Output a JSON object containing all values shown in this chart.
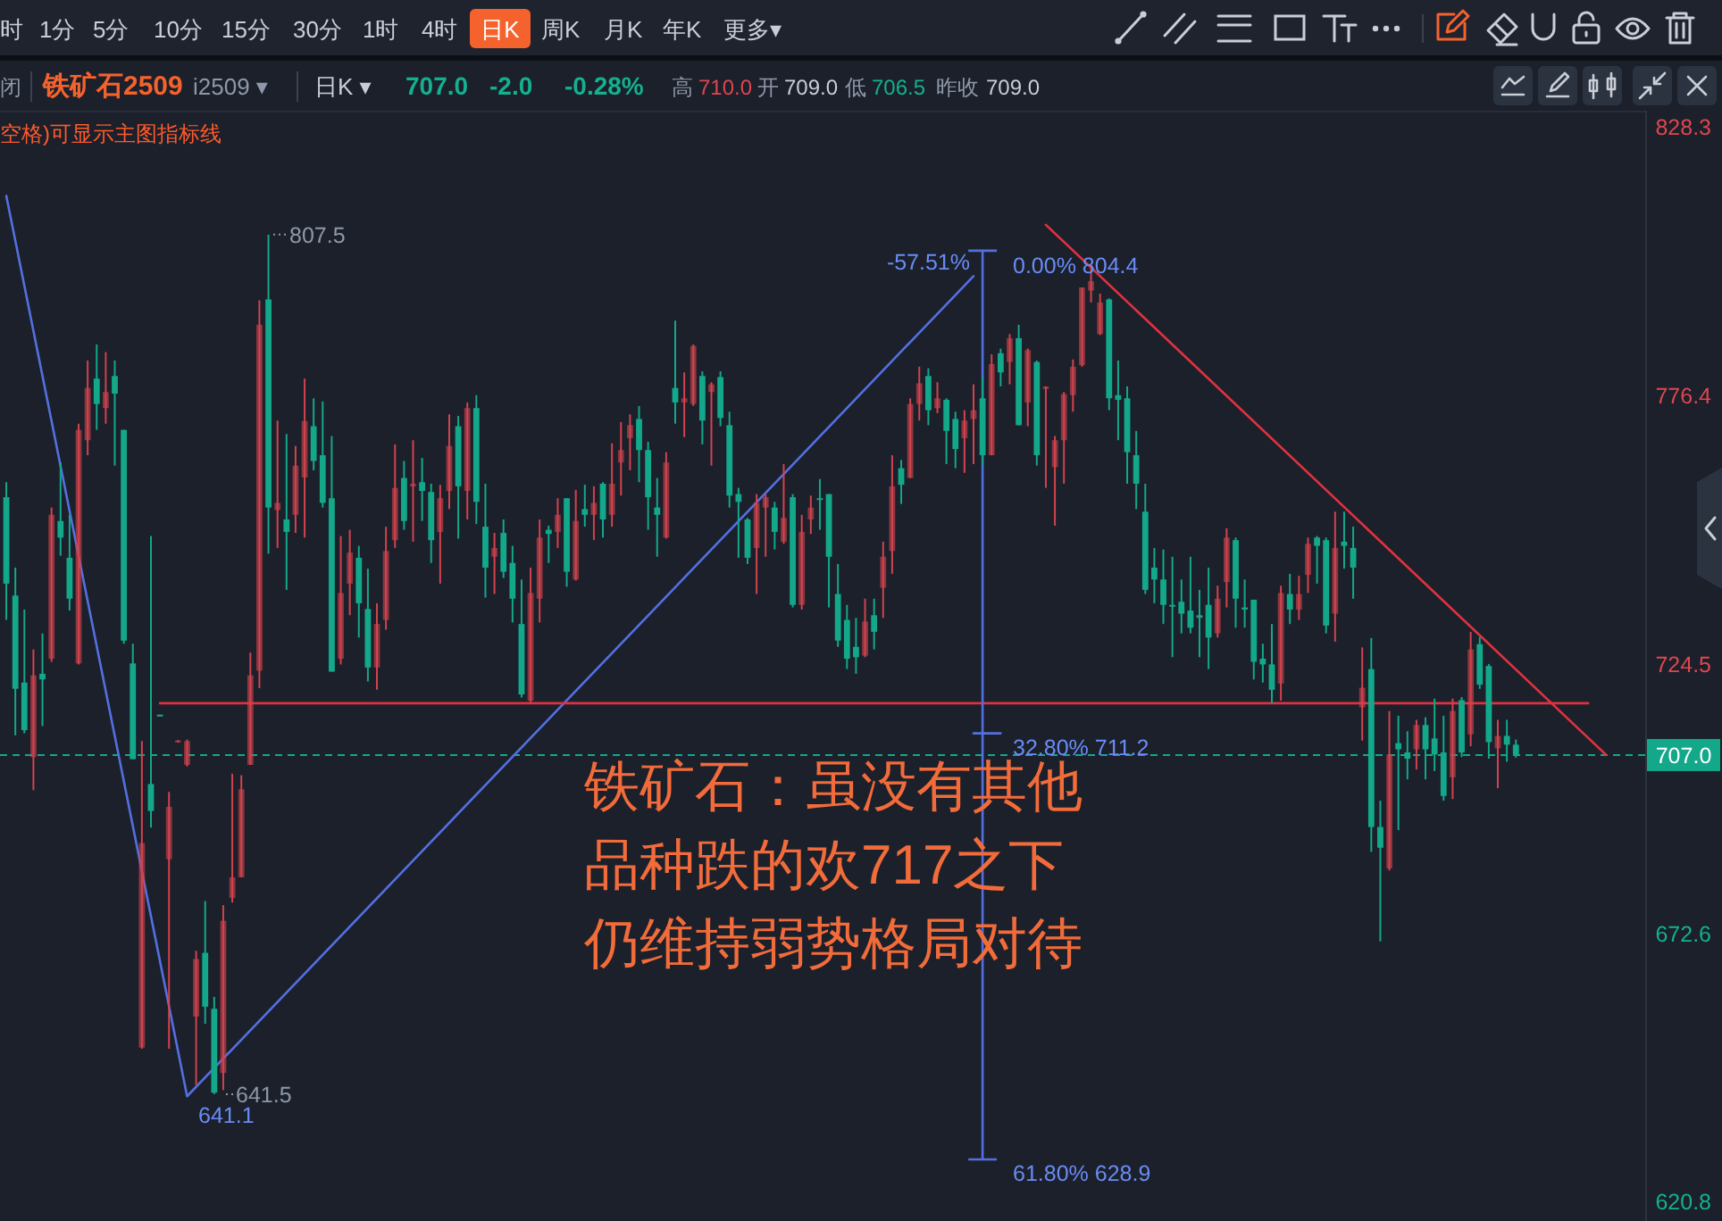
{
  "chart_data": {
    "type": "candlestick",
    "title": "铁矿石2509",
    "subtitle": "i2509 ▾",
    "categories": [
      null,
      null,
      null,
      null,
      null,
      null,
      null,
      null,
      null,
      null,
      null,
      null,
      null,
      null,
      null,
      null,
      null,
      null,
      null,
      null,
      null,
      null,
      null,
      null,
      null,
      null,
      null,
      null,
      null,
      null,
      null,
      null,
      null,
      null,
      null,
      null,
      null,
      null,
      null,
      null,
      null,
      null,
      null,
      null,
      null,
      null,
      null,
      null,
      null,
      null,
      null,
      null,
      null,
      null,
      null,
      null,
      null,
      null,
      null,
      null,
      null,
      null,
      null,
      null,
      null,
      null,
      null,
      null,
      null,
      null,
      null,
      null,
      null,
      null,
      null,
      null,
      null,
      null,
      null,
      null,
      null,
      null,
      null,
      null,
      null,
      null,
      null,
      null,
      null,
      null,
      null,
      null,
      null,
      null,
      null,
      null,
      null,
      null,
      null,
      null,
      null,
      null,
      null,
      null,
      null,
      null,
      null,
      null,
      null,
      null,
      null,
      null,
      null,
      null,
      null,
      null,
      null,
      null,
      null,
      null,
      null,
      null,
      null,
      null,
      null,
      null,
      null,
      null,
      null,
      null,
      null,
      null,
      null,
      null,
      null,
      null,
      null,
      null,
      null,
      null,
      null,
      null,
      null,
      null,
      null,
      null,
      null,
      null,
      null,
      null,
      null,
      null,
      null,
      null,
      null,
      null,
      null,
      null,
      null,
      null,
      null,
      null,
      null,
      null,
      null,
      null,
      null,
      null,
      null,
      null,
      null,
      null,
      null,
      null,
      null,
      null,
      null,
      null,
      null,
      null,
      null,
      null
    ],
    "ohlc": [
      [
        756.8,
        759.7,
        733.1,
        740.1
      ],
      [
        737.8,
        743.2,
        710.8,
        719.8
      ],
      [
        721.0,
        735.1,
        711.2,
        711.8
      ],
      [
        706.6,
        727.4,
        700.2,
        722.4
      ],
      [
        722.7,
        730.5,
        712.6,
        721.6
      ],
      [
        725.6,
        754.8,
        725.0,
        753.4
      ],
      [
        752.2,
        763.5,
        745.5,
        749.0
      ],
      [
        745.1,
        753.4,
        734.9,
        737.2
      ],
      [
        724.7,
        771.0,
        724.5,
        769.8
      ],
      [
        767.8,
        783.2,
        764.9,
        777.9
      ],
      [
        779.7,
        786.3,
        769.8,
        774.8
      ],
      [
        774.0,
        784.8,
        771.0,
        777.1
      ],
      [
        780.2,
        783.2,
        762.9,
        776.8
      ],
      [
        769.8,
        769.8,
        728.5,
        729.1
      ],
      [
        724.7,
        728.5,
        706.2,
        706.2
      ],
      [
        650.5,
        709.7,
        650.3,
        690.0
      ],
      [
        701.4,
        749.3,
        693.0,
        696.2
      ],
      [
        714.8,
        714.8,
        714.5,
        714.5
      ],
      [
        686.9,
        699.9,
        650.3,
        697.0
      ],
      [
        709.6,
        709.9,
        709.4,
        709.8
      ],
      [
        705.1,
        710.0,
        704.8,
        709.7
      ],
      [
        656.5,
        669.2,
        643.3,
        667.6
      ],
      [
        668.8,
        678.8,
        655.1,
        658.4
      ],
      [
        658.0,
        660.3,
        641.5,
        641.8
      ],
      [
        645.6,
        678.0,
        642.3,
        675.0
      ],
      [
        679.4,
        703.4,
        678.5,
        683.4
      ],
      [
        683.4,
        703.1,
        683.4,
        700.4
      ],
      [
        705.1,
        726.8,
        705.1,
        722.4
      ],
      [
        723.3,
        794.8,
        719.9,
        790.1
      ],
      [
        795.0,
        807.5,
        745.9,
        754.8
      ],
      [
        754.3,
        771.6,
        747.0,
        755.7
      ],
      [
        752.5,
        769.0,
        738.9,
        750.1
      ],
      [
        753.4,
        766.7,
        749.9,
        762.9
      ],
      [
        760.6,
        779.7,
        749.0,
        771.5
      ],
      [
        770.5,
        775.9,
        762.0,
        763.8
      ],
      [
        764.9,
        775.3,
        754.8,
        755.7
      ],
      [
        756.6,
        768.6,
        723.1,
        723.1
      ],
      [
        725.6,
        749.3,
        724.5,
        738.3
      ],
      [
        740.1,
        750.5,
        734.0,
        746.1
      ],
      [
        745.1,
        747.4,
        729.7,
        736.3
      ],
      [
        735.2,
        743.0,
        721.2,
        723.9
      ],
      [
        723.9,
        736.3,
        719.6,
        732.3
      ],
      [
        733.1,
        751.1,
        731.2,
        746.4
      ],
      [
        748.5,
        767.0,
        747.0,
        758.6
      ],
      [
        760.5,
        763.8,
        750.5,
        752.2
      ],
      [
        758.9,
        767.8,
        748.2,
        759.4
      ],
      [
        759.7,
        764.4,
        752.2,
        758.0
      ],
      [
        757.8,
        759.4,
        744.1,
        748.5
      ],
      [
        750.1,
        759.2,
        740.1,
        756.6
      ],
      [
        758.0,
        772.8,
        754.5,
        766.7
      ],
      [
        770.5,
        772.5,
        748.8,
        758.9
      ],
      [
        758.0,
        775.1,
        752.5,
        774.0
      ],
      [
        774.0,
        776.5,
        751.6,
        755.9
      ],
      [
        751.1,
        759.4,
        737.4,
        743.2
      ],
      [
        745.3,
        749.9,
        738.1,
        747.0
      ],
      [
        749.9,
        752.5,
        741.2,
        742.4
      ],
      [
        744.1,
        747.4,
        732.6,
        737.2
      ],
      [
        732.3,
        740.9,
        718.1,
        718.7
      ],
      [
        717.5,
        743.2,
        717.0,
        738.3
      ],
      [
        737.2,
        752.5,
        732.6,
        749.0
      ],
      [
        750.5,
        751.3,
        744.1,
        749.7
      ],
      [
        750.1,
        756.6,
        747.0,
        753.4
      ],
      [
        756.6,
        756.6,
        739.5,
        742.4
      ],
      [
        740.9,
        758.2,
        740.7,
        752.2
      ],
      [
        754.5,
        759.2,
        751.1,
        753.4
      ],
      [
        753.4,
        758.9,
        748.5,
        755.7
      ],
      [
        759.4,
        759.7,
        749.0,
        752.5
      ],
      [
        753.4,
        767.2,
        751.1,
        759.4
      ],
      [
        763.5,
        771.3,
        757.1,
        765.9
      ],
      [
        768.2,
        772.8,
        762.0,
        770.7
      ],
      [
        771.9,
        774.4,
        759.7,
        765.9
      ],
      [
        765.9,
        767.5,
        750.5,
        756.8
      ],
      [
        754.8,
        760.5,
        745.3,
        753.4
      ],
      [
        749.0,
        765.5,
        748.8,
        763.5
      ],
      [
        777.9,
        790.9,
        771.0,
        775.1
      ],
      [
        775.1,
        780.9,
        768.4,
        775.9
      ],
      [
        774.8,
        786.3,
        774.4,
        786.0
      ],
      [
        780.2,
        781.1,
        767.0,
        771.6
      ],
      [
        777.1,
        779.0,
        762.9,
        778.6
      ],
      [
        780.0,
        781.1,
        770.5,
        772.1
      ],
      [
        770.7,
        773.3,
        754.8,
        757.1
      ],
      [
        757.4,
        758.6,
        745.1,
        755.9
      ],
      [
        752.5,
        752.8,
        743.9,
        745.1
      ],
      [
        747.0,
        757.4,
        738.1,
        755.7
      ],
      [
        754.8,
        757.4,
        745.3,
        756.8
      ],
      [
        754.8,
        755.9,
        746.7,
        750.1
      ],
      [
        748.2,
        763.2,
        747.8,
        752.8
      ],
      [
        756.8,
        757.4,
        735.5,
        736.0
      ],
      [
        736.0,
        753.4,
        735.1,
        750.1
      ],
      [
        752.5,
        757.1,
        749.7,
        754.8
      ],
      [
        756.6,
        760.3,
        750.5,
        756.3
      ],
      [
        757.4,
        757.4,
        735.5,
        745.3
      ],
      [
        738.1,
        743.9,
        727.9,
        729.1
      ],
      [
        733.1,
        736.0,
        723.6,
        725.6
      ],
      [
        727.9,
        733.5,
        722.7,
        725.9
      ],
      [
        726.2,
        737.2,
        725.9,
        732.8
      ],
      [
        734.0,
        737.2,
        727.4,
        730.8
      ],
      [
        739.3,
        748.2,
        733.5,
        745.3
      ],
      [
        746.4,
        764.9,
        742.0,
        758.9
      ],
      [
        762.4,
        764.0,
        755.5,
        759.2
      ],
      [
        760.5,
        775.9,
        760.5,
        774.8
      ],
      [
        774.8,
        782.0,
        771.6,
        778.8
      ],
      [
        780.2,
        781.7,
        770.7,
        773.6
      ],
      [
        774.0,
        779.0,
        773.0,
        775.9
      ],
      [
        775.6,
        775.9,
        763.2,
        769.6
      ],
      [
        771.9,
        773.3,
        762.4,
        766.1
      ],
      [
        768.2,
        773.6,
        761.5,
        771.6
      ],
      [
        771.9,
        778.6,
        763.2,
        773.6
      ],
      [
        775.9,
        780.0,
        762.9,
        764.9
      ],
      [
        764.9,
        784.4,
        764.9,
        782.5
      ],
      [
        784.6,
        785.5,
        778.2,
        780.9
      ],
      [
        782.9,
        788.3,
        778.6,
        787.5
      ],
      [
        787.5,
        790.1,
        770.7,
        770.7
      ],
      [
        775.1,
        785.5,
        770.5,
        785.2
      ],
      [
        782.9,
        783.2,
        762.9,
        764.9
      ],
      [
        777.7,
        778.2,
        758.6,
        778.2
      ],
      [
        762.6,
        768.6,
        751.3,
        767.8
      ],
      [
        767.8,
        777.1,
        759.4,
        776.7
      ],
      [
        776.5,
        783.4,
        773.3,
        782.0
      ],
      [
        782.3,
        797.3,
        782.0,
        797.3
      ],
      [
        796.7,
        801.7,
        794.4,
        798.5
      ],
      [
        788.3,
        796.1,
        788.1,
        794.4
      ],
      [
        795.0,
        795.2,
        773.6,
        775.9
      ],
      [
        776.5,
        783.2,
        767.8,
        775.6
      ],
      [
        775.9,
        778.2,
        759.4,
        765.5
      ],
      [
        764.9,
        769.6,
        754.5,
        759.4
      ],
      [
        754.0,
        759.4,
        738.1,
        738.9
      ],
      [
        743.2,
        747.0,
        736.3,
        740.9
      ],
      [
        740.9,
        746.7,
        732.3,
        736.0
      ],
      [
        736.0,
        745.3,
        725.9,
        735.8
      ],
      [
        736.6,
        740.9,
        730.5,
        734.3
      ],
      [
        734.9,
        745.3,
        730.5,
        731.6
      ],
      [
        734.0,
        738.9,
        725.9,
        733.5
      ],
      [
        736.0,
        743.2,
        723.6,
        729.7
      ],
      [
        730.5,
        739.7,
        729.7,
        737.2
      ],
      [
        740.4,
        750.8,
        735.5,
        749.0
      ],
      [
        748.5,
        749.0,
        731.6,
        737.2
      ],
      [
        735.5,
        740.9,
        731.6,
        735.1
      ],
      [
        737.0,
        737.0,
        721.6,
        725.0
      ],
      [
        725.6,
        728.5,
        721.0,
        724.5
      ],
      [
        724.5,
        732.3,
        717.0,
        719.6
      ],
      [
        720.8,
        739.7,
        717.5,
        738.3
      ],
      [
        738.1,
        742.0,
        732.3,
        735.1
      ],
      [
        735.1,
        741.6,
        733.1,
        738.1
      ],
      [
        741.8,
        749.0,
        738.3,
        747.8
      ],
      [
        749.0,
        749.3,
        740.1,
        747.4
      ],
      [
        748.5,
        749.0,
        730.5,
        732.0
      ],
      [
        734.3,
        754.0,
        728.9,
        747.0
      ],
      [
        748.2,
        754.0,
        743.0,
        747.4
      ],
      [
        747.0,
        751.1,
        737.2,
        743.2
      ],
      [
        716.2,
        727.8,
        709.8,
        720.0
      ],
      [
        723.6,
        729.6,
        688.3,
        693.1
      ],
      [
        693.1,
        698.2,
        671.0,
        689.1
      ],
      [
        685.1,
        715.5,
        684.7,
        707.1
      ],
      [
        709.3,
        714.6,
        692.5,
        708.1
      ],
      [
        707.5,
        711.6,
        702.3,
        706.3
      ],
      [
        708.1,
        713.8,
        704.2,
        712.8
      ],
      [
        712.8,
        714.3,
        702.3,
        708.1
      ],
      [
        710.2,
        717.9,
        703.9,
        707.1
      ],
      [
        707.5,
        714.6,
        698.2,
        699.1
      ],
      [
        702.7,
        717.9,
        698.5,
        715.5
      ],
      [
        717.6,
        718.2,
        706.6,
        707.5
      ],
      [
        711.0,
        730.8,
        708.7,
        727.4
      ],
      [
        728.4,
        729.8,
        719.8,
        720.6
      ],
      [
        724.2,
        724.6,
        706.3,
        709.5
      ],
      [
        708.3,
        713.8,
        700.6,
        710.7
      ],
      [
        710.7,
        713.8,
        705.7,
        709.0
      ],
      [
        709.0,
        710.0,
        706.5,
        707.0
      ],
      null,
      null,
      null,
      null,
      null,
      null,
      null,
      null,
      null,
      null,
      null,
      null,
      null,
      null
    ],
    "colors": [
      "#13a88a",
      "#13a88a",
      "#13a88a",
      "#d2434d",
      "#13a88a",
      "#d2434d",
      "#13a88a",
      "#13a88a",
      "#d2434d",
      "#d2434d",
      "#13a88a",
      "#d2434d",
      "#13a88a",
      "#13a88a",
      "#13a88a",
      "#d2434d",
      "#13a88a",
      "#13a88a",
      "#d2434d",
      "#d2434d",
      "#d2434d",
      "#d2434d",
      "#13a88a",
      "#13a88a",
      "#d2434d",
      "#d2434d",
      "#d2434d",
      "#d2434d",
      "#d2434d",
      "#13a88a",
      "#d2434d",
      "#13a88a",
      "#d2434d",
      "#d2434d",
      "#13a88a",
      "#13a88a",
      "#13a88a",
      "#d2434d",
      "#d2434d",
      "#13a88a",
      "#13a88a",
      "#d2434d",
      "#d2434d",
      "#d2434d",
      "#13a88a",
      "#d2434d",
      "#13a88a",
      "#13a88a",
      "#d2434d",
      "#d2434d",
      "#13a88a",
      "#d2434d",
      "#13a88a",
      "#13a88a",
      "#d2434d",
      "#13a88a",
      "#13a88a",
      "#13a88a",
      "#d2434d",
      "#d2434d",
      "#13a88a",
      "#d2434d",
      "#13a88a",
      "#d2434d",
      "#13a88a",
      "#d2434d",
      "#13a88a",
      "#d2434d",
      "#d2434d",
      "#d2434d",
      "#13a88a",
      "#13a88a",
      "#13a88a",
      "#d2434d",
      "#13a88a",
      "#d2434d",
      "#d2434d",
      "#13a88a",
      "#d2434d",
      "#13a88a",
      "#13a88a",
      "#13a88a",
      "#13a88a",
      "#d2434d",
      "#d2434d",
      "#13a88a",
      "#d2434d",
      "#13a88a",
      "#d2434d",
      "#d2434d",
      "#13a88a",
      "#13a88a",
      "#13a88a",
      "#13a88a",
      "#13a88a",
      "#d2434d",
      "#13a88a",
      "#d2434d",
      "#d2434d",
      "#13a88a",
      "#d2434d",
      "#d2434d",
      "#13a88a",
      "#d2434d",
      "#13a88a",
      "#13a88a",
      "#d2434d",
      "#d2434d",
      "#13a88a",
      "#d2434d",
      "#13a88a",
      "#d2434d",
      "#13a88a",
      "#d2434d",
      "#13a88a",
      "#d2434d",
      "#d2434d",
      "#d2434d",
      "#d2434d",
      "#d2434d",
      "#d2434d",
      "#d2434d",
      "#13a88a",
      "#13a88a",
      "#13a88a",
      "#13a88a",
      "#13a88a",
      "#13a88a",
      "#13a88a",
      "#13a88a",
      "#13a88a",
      "#13a88a",
      "#13a88a",
      "#13a88a",
      "#d2434d",
      "#d2434d",
      "#13a88a",
      "#13a88a",
      "#13a88a",
      "#13a88a",
      "#13a88a",
      "#d2434d",
      "#13a88a",
      "#d2434d",
      "#d2434d",
      "#13a88a",
      "#13a88a",
      "#d2434d",
      "#13a88a",
      "#13a88a",
      "#d2434d",
      "#13a88a",
      "#13a88a",
      "#d2434d",
      "#13a88a",
      "#13a88a",
      "#d2434d",
      "#13a88a",
      "#13a88a",
      "#13a88a",
      "#d2434d",
      "#13a88a",
      "#d2434d",
      "#13a88a",
      "#13a88a",
      "#d2434d",
      "#13a88a",
      "#13a88a",
      null,
      null,
      null,
      null,
      null,
      null,
      null,
      null,
      null,
      null,
      null,
      null,
      null,
      null
    ],
    "ylim": [
      617.7,
      831.1
    ],
    "yticks": [
      620.8,
      672.6,
      724.5,
      776.4,
      828.3
    ],
    "tick_labels": "y",
    "series": [
      {
        "type": "line",
        "color": "#5470e0",
        "values": [
          815,
          null,
          null,
          null,
          null,
          null,
          null,
          null,
          null,
          null,
          null,
          null,
          null,
          null,
          null,
          null,
          null,
          null,
          null,
          null,
          641.1,
          null,
          null,
          null,
          null,
          null,
          null,
          null,
          null,
          null,
          null,
          null,
          null,
          null,
          null,
          null,
          null,
          null,
          null,
          null,
          null,
          null,
          null,
          null,
          null,
          null,
          null,
          null,
          null,
          null,
          null,
          null,
          null,
          null,
          null,
          null,
          null,
          null,
          null,
          null,
          null,
          null,
          null,
          null,
          null,
          null,
          null,
          null,
          null,
          null,
          null,
          null,
          null,
          null,
          null,
          null,
          null,
          null,
          null,
          null,
          null,
          null,
          null,
          null,
          null,
          null,
          null,
          null,
          null,
          null,
          null,
          null,
          null,
          null,
          null,
          null,
          null,
          null,
          null,
          null,
          null,
          null,
          null,
          null,
          null,
          null,
          null,
          799.5,
          null,
          null,
          null,
          null,
          null,
          null,
          null,
          null,
          null,
          null,
          null,
          null,
          null,
          null,
          null,
          null,
          null,
          null,
          null,
          null,
          null,
          null,
          null,
          null,
          null,
          null,
          null,
          null,
          null,
          null,
          null,
          null,
          null,
          null,
          null,
          null,
          null,
          null,
          null,
          null,
          null,
          null,
          null,
          null,
          null,
          null,
          null,
          null,
          null,
          null,
          null,
          null,
          null,
          null,
          null,
          null,
          null,
          null,
          null,
          null,
          null,
          null,
          null,
          null,
          null,
          null,
          null,
          null,
          null,
          null,
          null,
          null,
          null,
          null
        ]
      },
      {
        "type": "line",
        "color": "#e0313f",
        "values": [
          null,
          null,
          null,
          null,
          null,
          null,
          null,
          null,
          null,
          null,
          null,
          null,
          null,
          null,
          null,
          null,
          null,
          717,
          null,
          null,
          null,
          null,
          null,
          null,
          null,
          null,
          null,
          null,
          null,
          null,
          null,
          null,
          null,
          null,
          null,
          null,
          null,
          null,
          null,
          null,
          null,
          null,
          null,
          null,
          null,
          null,
          null,
          null,
          null,
          null,
          null,
          null,
          null,
          null,
          null,
          null,
          null,
          null,
          null,
          null,
          null,
          null,
          null,
          null,
          null,
          null,
          null,
          null,
          null,
          null,
          null,
          null,
          null,
          null,
          null,
          null,
          null,
          null,
          null,
          null,
          null,
          null,
          null,
          null,
          null,
          null,
          null,
          null,
          null,
          null,
          null,
          null,
          null,
          null,
          null,
          null,
          null,
          null,
          null,
          null,
          null,
          null,
          null,
          null,
          null,
          null,
          null,
          null,
          null,
          null,
          null,
          null,
          null,
          null,
          null,
          null,
          null,
          null,
          null,
          null,
          null,
          null,
          null,
          null,
          null,
          null,
          null,
          null,
          null,
          null,
          null,
          null,
          null,
          null,
          null,
          null,
          null,
          null,
          null,
          null,
          null,
          null,
          null,
          null,
          null,
          null,
          null,
          null,
          null,
          null,
          null,
          null,
          null,
          null,
          null,
          null,
          null,
          null,
          null,
          null,
          null,
          null,
          null,
          null,
          null,
          null,
          null,
          null,
          null,
          null,
          null,
          null,
          null,
          null,
          null,
          717,
          null,
          null,
          null,
          null,
          null,
          null
        ]
      },
      {
        "type": "line",
        "color": "#e0313f",
        "values": [
          null,
          null,
          null,
          null,
          null,
          null,
          null,
          null,
          null,
          null,
          null,
          null,
          null,
          null,
          null,
          null,
          null,
          null,
          null,
          null,
          null,
          null,
          null,
          null,
          null,
          null,
          null,
          null,
          null,
          null,
          null,
          null,
          null,
          null,
          null,
          null,
          null,
          null,
          null,
          null,
          null,
          null,
          null,
          null,
          null,
          null,
          null,
          null,
          null,
          null,
          null,
          null,
          null,
          null,
          null,
          null,
          null,
          null,
          null,
          null,
          null,
          null,
          null,
          null,
          null,
          null,
          null,
          null,
          null,
          null,
          null,
          null,
          null,
          null,
          null,
          null,
          null,
          null,
          null,
          null,
          null,
          null,
          null,
          null,
          null,
          null,
          null,
          null,
          null,
          null,
          null,
          null,
          null,
          null,
          null,
          null,
          null,
          null,
          null,
          null,
          null,
          null,
          null,
          null,
          null,
          null,
          null,
          null,
          null,
          null,
          null,
          null,
          null,
          null,
          null,
          809.4,
          null,
          null,
          null,
          null,
          null,
          null,
          null,
          null,
          null,
          null,
          null,
          null,
          null,
          null,
          null,
          null,
          null,
          null,
          null,
          null,
          null,
          null,
          null,
          null,
          null,
          null,
          null,
          null,
          null,
          null,
          null,
          null,
          null,
          null,
          null,
          null,
          null,
          null,
          null,
          null,
          null,
          null,
          null,
          null,
          null,
          null,
          null,
          null,
          null,
          null,
          null,
          null,
          null,
          null,
          null,
          null,
          null,
          null,
          null,
          null,
          null,
          707.0,
          null,
          null,
          null,
          null
        ]
      },
      {
        "type": "line",
        "color": "#5470e0",
        "values": [
          null,
          null,
          null,
          null,
          null,
          null,
          null,
          null,
          null,
          null,
          null,
          null,
          null,
          null,
          null,
          null,
          null,
          null,
          null,
          null,
          null,
          null,
          null,
          null,
          null,
          null,
          null,
          null,
          null,
          null,
          null,
          null,
          null,
          null,
          null,
          null,
          null,
          null,
          null,
          null,
          null,
          null,
          null,
          null,
          null,
          null,
          null,
          null,
          null,
          null,
          null,
          null,
          null,
          null,
          null,
          null,
          null,
          null,
          null,
          null,
          null,
          null,
          null,
          null,
          null,
          null,
          null,
          null,
          null,
          null,
          null,
          null,
          null,
          null,
          null,
          null,
          null,
          null,
          null,
          null,
          null,
          null,
          null,
          null,
          null,
          null,
          null,
          null,
          null,
          null,
          null,
          null,
          null,
          null,
          null,
          null,
          null,
          null,
          null,
          null,
          null,
          null,
          null,
          null,
          null,
          null,
          null,
          711.2,
          711.2,
          711.2,
          711.2,
          null,
          null,
          null,
          null,
          null,
          null,
          null,
          null,
          null,
          null,
          null,
          null,
          null,
          null,
          null,
          null,
          null,
          null,
          null,
          null,
          null,
          null,
          null,
          null,
          null,
          null,
          null,
          null,
          null,
          null,
          null,
          null,
          null,
          null,
          null,
          null,
          null,
          null,
          null,
          null,
          null,
          null,
          null,
          null,
          null,
          null,
          null,
          null,
          null,
          null,
          null,
          null,
          null,
          null,
          null,
          null,
          null,
          null,
          null,
          null,
          null,
          null,
          null,
          null,
          null,
          null,
          null,
          null,
          null,
          null,
          null
        ],
        "errors": [
          null,
          null,
          null,
          null,
          null,
          null,
          null,
          null,
          null,
          null,
          null,
          null,
          null,
          null,
          null,
          null,
          null,
          null,
          null,
          null,
          null,
          null,
          null,
          null,
          null,
          null,
          null,
          null,
          null,
          null,
          null,
          null,
          null,
          null,
          null,
          null,
          null,
          null,
          null,
          null,
          null,
          null,
          null,
          null,
          null,
          null,
          null,
          null,
          null,
          null,
          null,
          null,
          null,
          null,
          null,
          null,
          null,
          null,
          null,
          null,
          null,
          null,
          null,
          null,
          null,
          null,
          null,
          null,
          null,
          null,
          null,
          null,
          null,
          null,
          null,
          null,
          null,
          null,
          null,
          null,
          null,
          null,
          null,
          null,
          null,
          null,
          null,
          null,
          null,
          null,
          null,
          null,
          null,
          null,
          null,
          null,
          null,
          null,
          null,
          null,
          null,
          null,
          null,
          null,
          null,
          null,
          null,
          null,
          [
            628.9,
            804.4
          ],
          null,
          null,
          null,
          null,
          null,
          null,
          null,
          null,
          null,
          null,
          null,
          null,
          null,
          null,
          null,
          null,
          null,
          null,
          null,
          null,
          null,
          null,
          null,
          null,
          null,
          null,
          null,
          null,
          null,
          null,
          null,
          null,
          null,
          null,
          null,
          null,
          null,
          null,
          null,
          null,
          null,
          null,
          null,
          null,
          null,
          null,
          null,
          null,
          null,
          null,
          null,
          null,
          null,
          null,
          null,
          null,
          null,
          null,
          null,
          null,
          null,
          null,
          null,
          null,
          null,
          null,
          null,
          null,
          null,
          null,
          null,
          null,
          null
        ]
      }
    ],
    "ref_lines": [
      {
        "axis": "y",
        "value": 707.0,
        "label": "707.0",
        "color": "#13a88a",
        "line_style": "dashed"
      }
    ],
    "annotations": [
      "时",
      "1分",
      "5分",
      "10分",
      "15分",
      "30分",
      "1时",
      "4时",
      "日K",
      "周K",
      "月K",
      "年K",
      "更多▾",
      "闭",
      "日K ▾",
      "707.0",
      "-2.0",
      "-0.28%",
      "高",
      "710.0",
      "开",
      "709.0",
      "低",
      "706.5",
      "昨收",
      "709.0",
      "空格)可显示主图指标线",
      "807.5",
      "641.5",
      "641.1",
      "-57.51%",
      "0.00% 804.4",
      "32.80% 711.2",
      "61.80% 628.9",
      "铁矿石：虽没有其他",
      "品种跌的欢717之下",
      "仍维持弱势格局对待"
    ]
  }
}
